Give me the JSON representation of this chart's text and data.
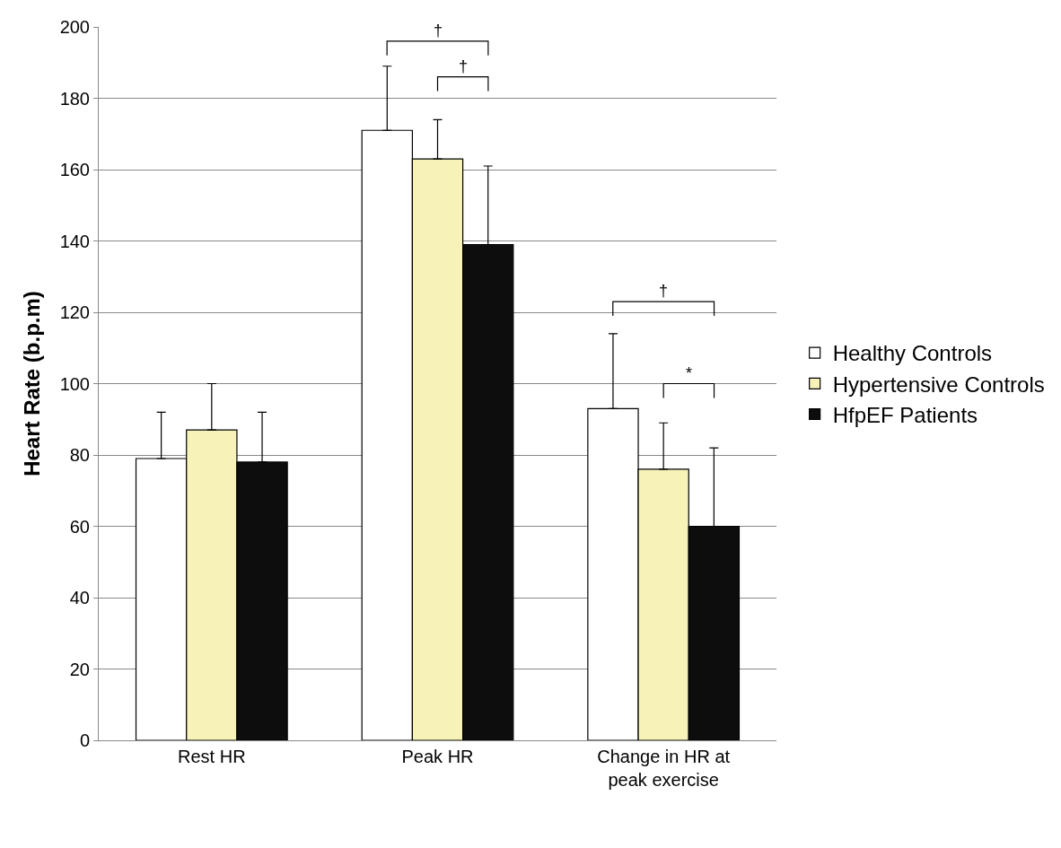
{
  "chart_data": {
    "type": "bar",
    "ylabel": "Heart Rate (b.p.m)",
    "categories": [
      "Rest HR",
      "Peak HR",
      "Change in HR at peak exercise"
    ],
    "series": [
      {
        "name": "Healthy Controls",
        "color": "#ffffff",
        "values": [
          79,
          171,
          93
        ],
        "errors": [
          [
            79,
            92
          ],
          [
            171,
            189
          ],
          [
            93,
            114
          ]
        ]
      },
      {
        "name": "Hypertensive Controls",
        "color": "#f7f2b8",
        "values": [
          87,
          163,
          76
        ],
        "errors": [
          [
            87,
            100
          ],
          [
            163,
            174
          ],
          [
            76,
            89
          ]
        ]
      },
      {
        "name": "HfpEF Patients",
        "color": "#0d0d0d",
        "values": [
          78,
          139,
          60
        ],
        "errors": [
          [
            78,
            92
          ],
          [
            139,
            161
          ],
          [
            60,
            82
          ]
        ]
      }
    ],
    "ylim": [
      0,
      200
    ],
    "yticks": [
      0,
      20,
      40,
      60,
      80,
      100,
      120,
      140,
      160,
      180,
      200
    ],
    "grid": "y",
    "legend": "right",
    "annotations": [
      "†",
      "†",
      "†",
      "*"
    ]
  }
}
